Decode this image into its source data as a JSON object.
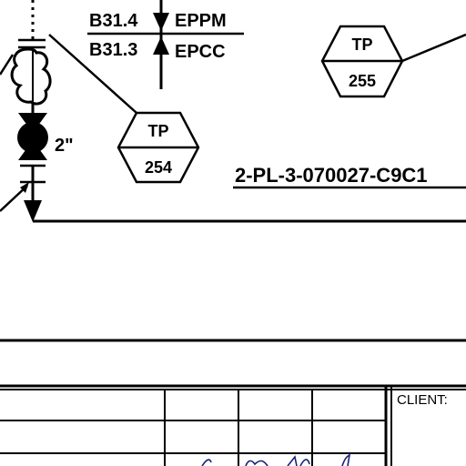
{
  "drawing": {
    "specs": {
      "upper_code": "B31.4",
      "upper_tag": "EPPM",
      "lower_code": "B31.3",
      "lower_tag": "EPCC"
    },
    "tie_points": [
      {
        "label": "TP",
        "number": "254"
      },
      {
        "label": "TP",
        "number": "255"
      }
    ],
    "valve_size": "2\"",
    "line_number": "2-PL-3-070027-C9C1",
    "title_block": {
      "client_label": "CLIENT:"
    }
  }
}
